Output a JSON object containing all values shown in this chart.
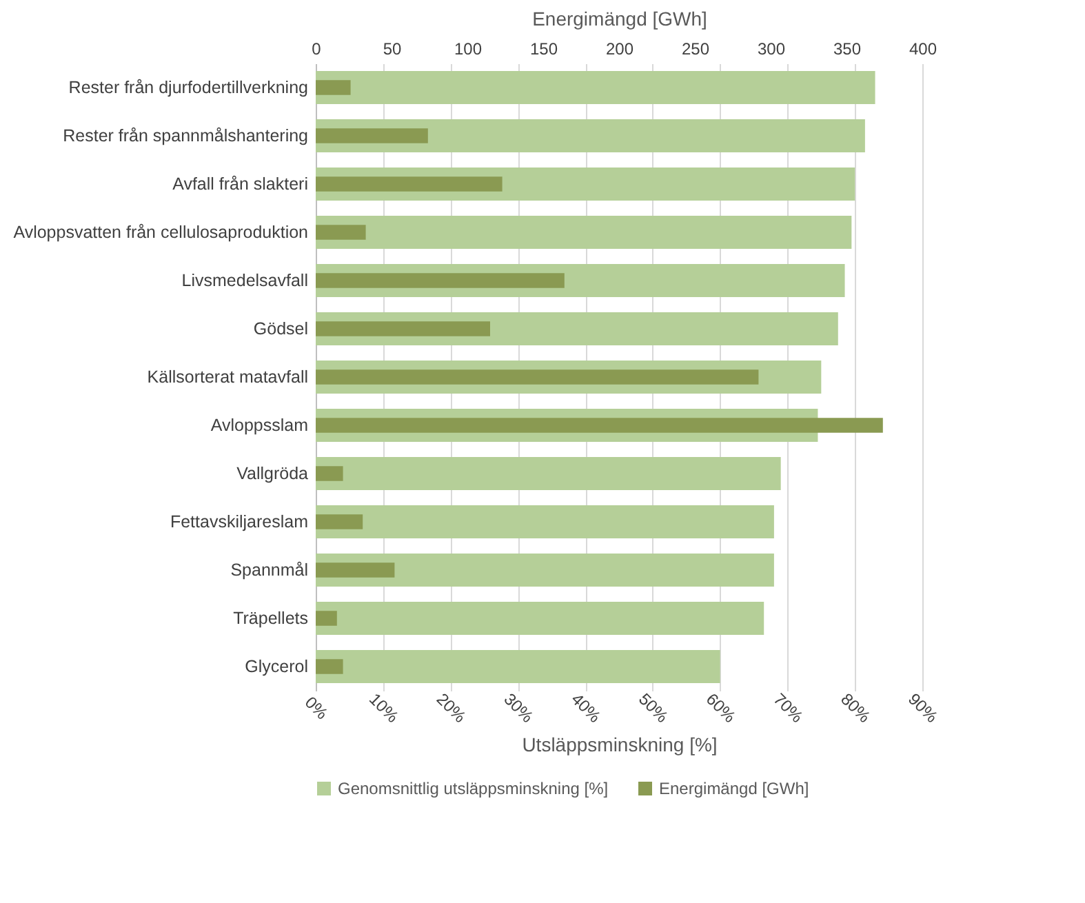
{
  "chart_data": {
    "type": "bar",
    "orientation": "horizontal",
    "categories": [
      "Rester från djurfodertillverkning",
      "Rester från spannmålshantering",
      "Avfall från slakteri",
      "Avloppsvatten från cellulosaproduktion",
      "Livsmedelsavfall",
      "Gödsel",
      "Källsorterat matavfall",
      "Avloppsslam",
      "Vallgröda",
      "Fettavskiljareslam",
      "Spannmål",
      "Träpellets",
      "Glycerol"
    ],
    "series": [
      {
        "name": "Genomsnittlig utsläppsminskning [%]",
        "color": "#b5cf98",
        "values": [
          83,
          81.5,
          80,
          79.5,
          78.5,
          77.5,
          75,
          74.5,
          69,
          68,
          68,
          66.5,
          60
        ]
      },
      {
        "name": "Energimängd [GWh]",
        "color": "#8a9a52",
        "axis": "x2",
        "values": [
          23,
          74,
          123,
          33,
          164,
          115,
          292,
          374,
          18,
          31,
          52,
          14,
          18
        ]
      }
    ],
    "xlabel": "Utsläppsminskning [%]",
    "x2label": "Energimängd [GWh]",
    "xlim": [
      0,
      90
    ],
    "xticks": [
      {
        "value": 0,
        "label": "0%"
      },
      {
        "value": 10,
        "label": "10%"
      },
      {
        "value": 20,
        "label": "20%"
      },
      {
        "value": 30,
        "label": "30%"
      },
      {
        "value": 40,
        "label": "40%"
      },
      {
        "value": 50,
        "label": "50%"
      },
      {
        "value": 60,
        "label": "60%"
      },
      {
        "value": 70,
        "label": "70%"
      },
      {
        "value": 80,
        "label": "80%"
      },
      {
        "value": 90,
        "label": "90%"
      }
    ],
    "x2lim": [
      0,
      400
    ],
    "x2ticks": [
      0,
      50,
      100,
      150,
      200,
      250,
      300,
      350,
      400
    ],
    "grid": "x",
    "legend": "bottom"
  }
}
